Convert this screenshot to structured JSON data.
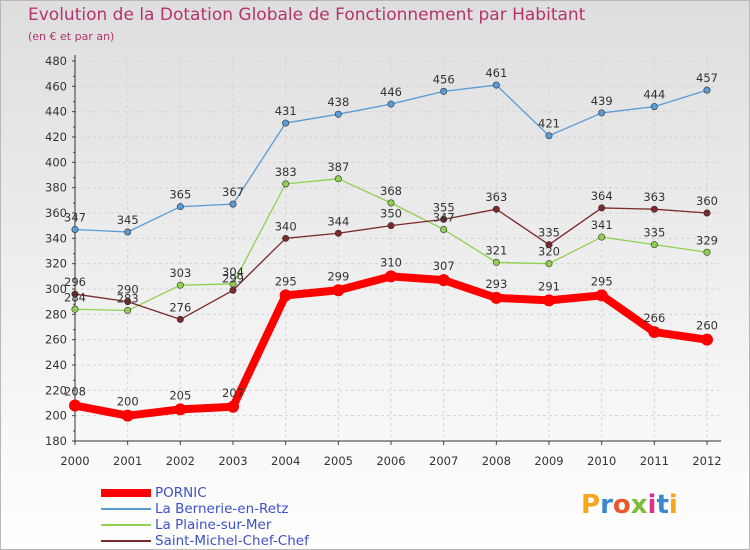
{
  "header": {
    "title": "Evolution de la Dotation Globale de Fonctionnement par Habitant",
    "subtitle": "(en € et par an)"
  },
  "chart_data": {
    "type": "line",
    "title": "Evolution de la Dotation Globale de Fonctionnement par Habitant",
    "ylabel": "(en € et par an)",
    "xlabel": "",
    "ylim": [
      180,
      480
    ],
    "ytick_step": 20,
    "grid": true,
    "x": [
      "2000",
      "2001",
      "2002",
      "2003",
      "2004",
      "2005",
      "2006",
      "2007",
      "2008",
      "2009",
      "2010",
      "2011",
      "2012"
    ],
    "series": [
      {
        "key": "pornic",
        "name": "PORNIC",
        "color": "#ff0000",
        "values": [
          208,
          200,
          205,
          207,
          295,
          299,
          310,
          307,
          293,
          291,
          295,
          266,
          260
        ]
      },
      {
        "key": "bernerie",
        "name": "La Bernerie-en-Retz",
        "color": "#5b9bd5",
        "values": [
          347,
          345,
          365,
          367,
          431,
          438,
          446,
          456,
          461,
          421,
          439,
          444,
          457
        ]
      },
      {
        "key": "plaine",
        "name": "La Plaine-sur-Mer",
        "color": "#90d050",
        "values": [
          284,
          283,
          303,
          304,
          383,
          387,
          368,
          347,
          321,
          320,
          341,
          335,
          329
        ]
      },
      {
        "key": "saintmichel",
        "name": "Saint-Michel-Chef-Chef",
        "color": "#7a2a2a",
        "values": [
          296,
          290,
          276,
          299,
          340,
          344,
          350,
          355,
          363,
          335,
          364,
          363,
          360
        ]
      }
    ],
    "legend_position": "bottom-left"
  },
  "brand": {
    "text": "Proxiti"
  }
}
